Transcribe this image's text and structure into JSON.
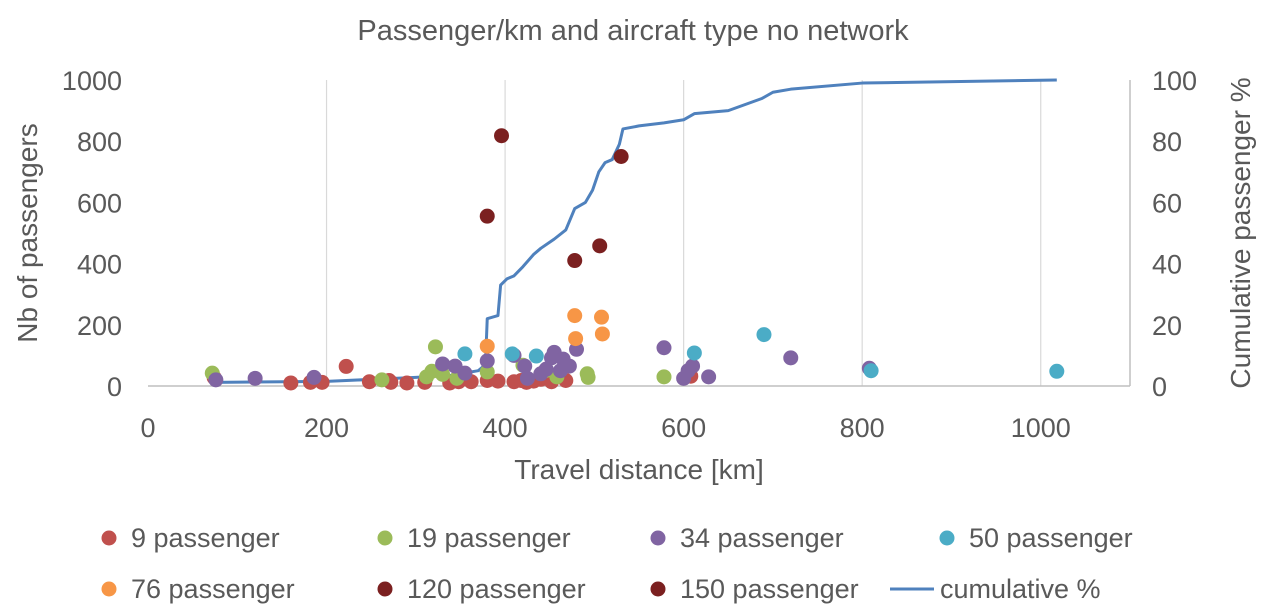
{
  "chart_data": {
    "type": "scatter",
    "title": "Passenger/km and aircraft type no network",
    "xlabel": "Travel distance [km]",
    "ylabel": "Nb of passengers",
    "y2label": "Cumulative passenger %",
    "xlim": [
      0,
      1100
    ],
    "ylim": [
      0,
      1000
    ],
    "y2lim": [
      0,
      100
    ],
    "xticks": [
      0,
      200,
      400,
      600,
      800,
      1000
    ],
    "yticks": [
      0,
      200,
      400,
      600,
      800,
      1000
    ],
    "y2ticks": [
      0,
      20,
      40,
      60,
      80,
      100
    ],
    "grid": "vertical",
    "legend_position": "bottom",
    "series": [
      {
        "name": "9 passenger",
        "color": "#C0504D",
        "kind": "scatter",
        "points": [
          [
            74,
            28
          ],
          [
            160,
            10
          ],
          [
            182,
            12
          ],
          [
            195,
            12
          ],
          [
            222,
            64
          ],
          [
            248,
            14
          ],
          [
            270,
            18
          ],
          [
            272,
            12
          ],
          [
            290,
            10
          ],
          [
            310,
            12
          ],
          [
            338,
            10
          ],
          [
            348,
            14
          ],
          [
            362,
            14
          ],
          [
            380,
            18
          ],
          [
            392,
            16
          ],
          [
            410,
            14
          ],
          [
            418,
            18
          ],
          [
            424,
            12
          ],
          [
            432,
            16
          ],
          [
            440,
            22
          ],
          [
            452,
            14
          ],
          [
            468,
            18
          ],
          [
            608,
            32
          ]
        ]
      },
      {
        "name": "19 passenger",
        "color": "#9BBB59",
        "kind": "scatter",
        "points": [
          [
            72,
            42
          ],
          [
            262,
            20
          ],
          [
            312,
            30
          ],
          [
            318,
            48
          ],
          [
            322,
            128
          ],
          [
            330,
            38
          ],
          [
            346,
            25
          ],
          [
            350,
            42
          ],
          [
            380,
            46
          ],
          [
            420,
            68
          ],
          [
            445,
            50
          ],
          [
            458,
            30
          ],
          [
            492,
            40
          ],
          [
            493,
            28
          ],
          [
            578,
            30
          ]
        ]
      },
      {
        "name": "34 passenger",
        "color": "#8064A2",
        "kind": "scatter",
        "points": [
          [
            76,
            20
          ],
          [
            120,
            25
          ],
          [
            186,
            28
          ],
          [
            330,
            72
          ],
          [
            344,
            65
          ],
          [
            355,
            42
          ],
          [
            380,
            82
          ],
          [
            410,
            100
          ],
          [
            422,
            65
          ],
          [
            425,
            25
          ],
          [
            440,
            40
          ],
          [
            446,
            55
          ],
          [
            452,
            92
          ],
          [
            455,
            110
          ],
          [
            462,
            50
          ],
          [
            465,
            88
          ],
          [
            472,
            65
          ],
          [
            480,
            120
          ],
          [
            578,
            125
          ],
          [
            600,
            25
          ],
          [
            605,
            50
          ],
          [
            610,
            65
          ],
          [
            628,
            30
          ],
          [
            720,
            92
          ],
          [
            808,
            58
          ]
        ]
      },
      {
        "name": "50 passenger",
        "color": "#4BACC6",
        "kind": "scatter",
        "points": [
          [
            355,
            105
          ],
          [
            408,
            105
          ],
          [
            435,
            98
          ],
          [
            612,
            108
          ],
          [
            690,
            168
          ],
          [
            810,
            50
          ],
          [
            1018,
            48
          ]
        ]
      },
      {
        "name": "76 passenger",
        "color": "#F79646",
        "kind": "scatter",
        "points": [
          [
            380,
            130
          ],
          [
            478,
            230
          ],
          [
            479,
            155
          ],
          [
            508,
            225
          ],
          [
            509,
            170
          ]
        ]
      },
      {
        "name": "120 passenger",
        "color": "#7B2020",
        "kind": "scatter",
        "points": [
          [
            380,
            555
          ],
          [
            396,
            818
          ],
          [
            478,
            410
          ],
          [
            506,
            458
          ],
          [
            530,
            750
          ]
        ]
      },
      {
        "name": "150 passenger",
        "color": "#7B2020",
        "kind": "scatter",
        "points": []
      },
      {
        "name": "cumulative %",
        "color": "#4F81BD",
        "kind": "line",
        "axis": "y2",
        "points": [
          [
            76,
            1.2
          ],
          [
            200,
            1.5
          ],
          [
            300,
            2.8
          ],
          [
            340,
            3.5
          ],
          [
            370,
            5
          ],
          [
            378,
            7
          ],
          [
            380,
            22
          ],
          [
            392,
            23
          ],
          [
            395,
            33
          ],
          [
            402,
            35
          ],
          [
            410,
            36
          ],
          [
            420,
            39
          ],
          [
            432,
            43
          ],
          [
            440,
            45
          ],
          [
            455,
            48
          ],
          [
            468,
            51
          ],
          [
            478,
            58
          ],
          [
            490,
            60
          ],
          [
            498,
            64
          ],
          [
            505,
            70
          ],
          [
            512,
            73
          ],
          [
            520,
            74
          ],
          [
            528,
            79
          ],
          [
            532,
            84
          ],
          [
            550,
            85
          ],
          [
            578,
            86
          ],
          [
            600,
            87
          ],
          [
            612,
            89
          ],
          [
            650,
            90
          ],
          [
            688,
            94
          ],
          [
            700,
            96
          ],
          [
            720,
            97
          ],
          [
            800,
            99
          ],
          [
            1018,
            100
          ]
        ]
      }
    ]
  }
}
